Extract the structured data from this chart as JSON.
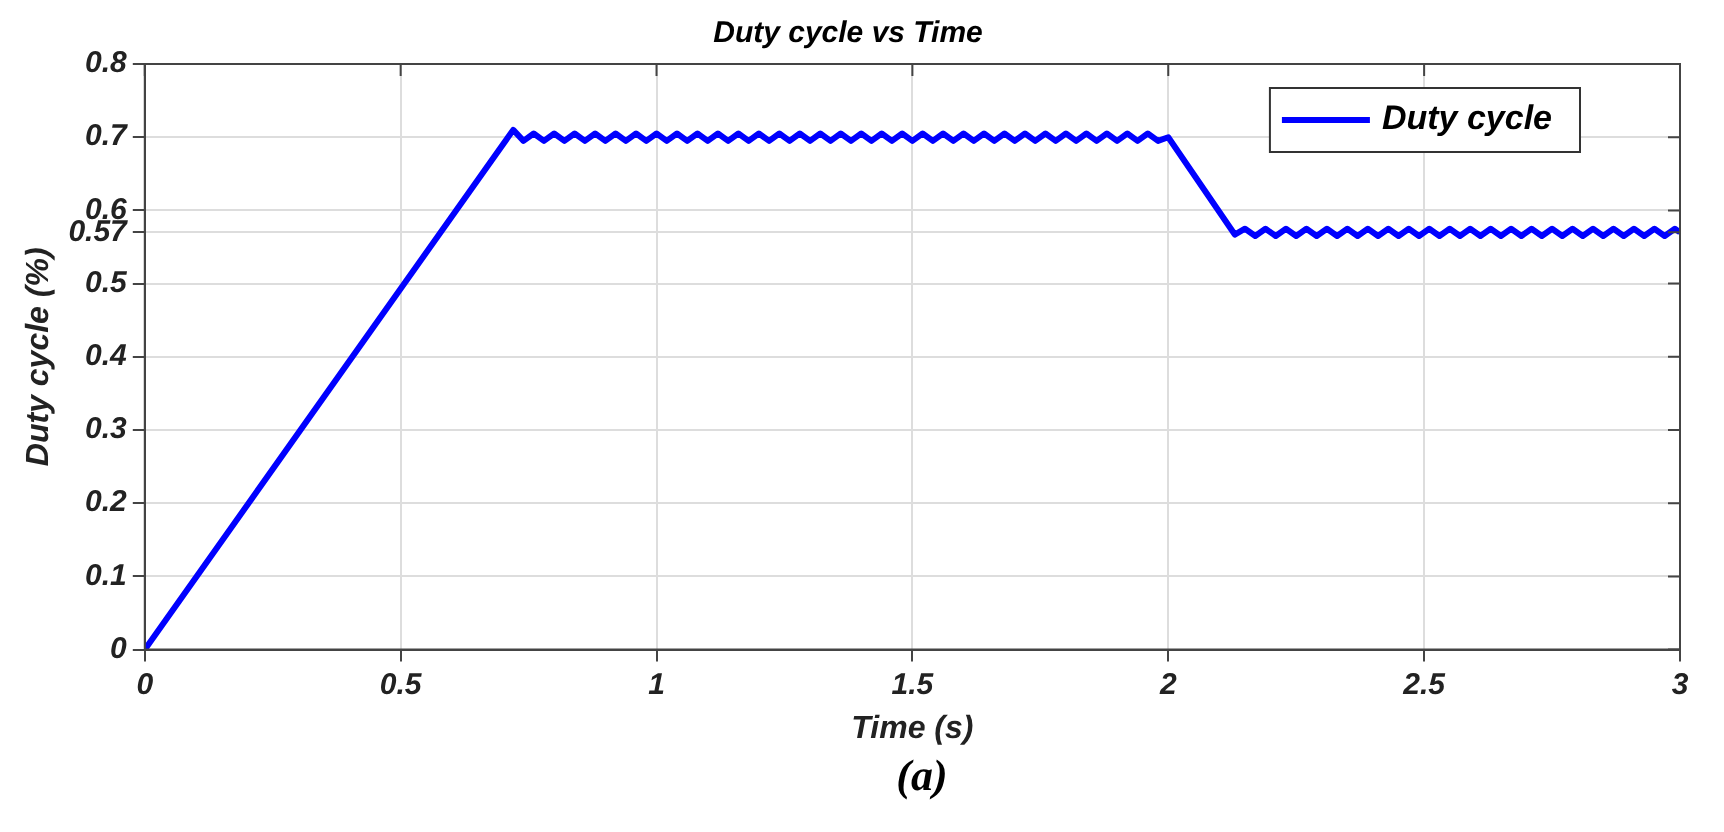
{
  "chart_data": {
    "type": "line",
    "title": "Duty cycle vs Time",
    "xlabel": "Time (s)",
    "ylabel": "Duty cycle (%)",
    "annotations": [
      "(a)"
    ],
    "xlim": [
      0,
      3
    ],
    "xticks": [
      0,
      0.5,
      1,
      1.5,
      2,
      2.5,
      3
    ],
    "ylim": [
      0,
      0.8
    ],
    "yticks": [
      0,
      0.1,
      0.2,
      0.3,
      0.4,
      0.5,
      {
        "value": 0.57,
        "label": "0.57"
      },
      0.6,
      0.7,
      0.8
    ],
    "grid": true,
    "legend": "top right",
    "line_style": "solid",
    "marker": "none",
    "series": [
      {
        "name": "Duty cycle",
        "color": "#0000ff",
        "x": [
          0,
          0.72,
          0.74,
          0.76,
          0.78,
          0.8,
          0.82,
          0.84,
          0.86,
          0.88,
          0.9,
          0.92,
          0.94,
          0.96,
          0.98,
          1,
          1.02,
          1.04,
          1.06,
          1.08,
          1.1,
          1.12,
          1.14,
          1.16,
          1.18,
          1.2,
          1.22,
          1.24,
          1.26,
          1.28,
          1.3,
          1.32,
          1.34,
          1.36,
          1.38,
          1.4,
          1.42,
          1.44,
          1.46,
          1.48,
          1.5,
          1.52,
          1.54,
          1.56,
          1.58,
          1.6,
          1.62,
          1.64,
          1.66,
          1.68,
          1.7,
          1.72,
          1.74,
          1.76,
          1.78,
          1.8,
          1.82,
          1.84,
          1.86,
          1.88,
          1.9,
          1.92,
          1.94,
          1.96,
          1.98,
          2,
          2.13,
          2.15,
          2.17,
          2.19,
          2.21,
          2.23,
          2.25,
          2.27,
          2.29,
          2.31,
          2.33,
          2.35,
          2.37,
          2.39,
          2.41,
          2.43,
          2.45,
          2.47,
          2.49,
          2.51,
          2.53,
          2.55,
          2.57,
          2.59,
          2.61,
          2.63,
          2.65,
          2.67,
          2.69,
          2.71,
          2.73,
          2.75,
          2.77,
          2.79,
          2.81,
          2.83,
          2.85,
          2.87,
          2.89,
          2.91,
          2.93,
          2.95,
          2.97,
          2.99,
          3
        ],
        "values": [
          0,
          0.71,
          0.695,
          0.705,
          0.695,
          0.705,
          0.695,
          0.705,
          0.695,
          0.705,
          0.695,
          0.705,
          0.695,
          0.705,
          0.695,
          0.705,
          0.695,
          0.705,
          0.695,
          0.705,
          0.695,
          0.705,
          0.695,
          0.705,
          0.695,
          0.705,
          0.695,
          0.705,
          0.695,
          0.705,
          0.695,
          0.705,
          0.695,
          0.705,
          0.695,
          0.705,
          0.695,
          0.705,
          0.695,
          0.705,
          0.695,
          0.705,
          0.695,
          0.705,
          0.695,
          0.705,
          0.695,
          0.705,
          0.695,
          0.705,
          0.695,
          0.705,
          0.695,
          0.705,
          0.695,
          0.705,
          0.695,
          0.705,
          0.695,
          0.705,
          0.695,
          0.705,
          0.695,
          0.705,
          0.695,
          0.7,
          0.567,
          0.575,
          0.565,
          0.575,
          0.565,
          0.575,
          0.565,
          0.575,
          0.565,
          0.575,
          0.565,
          0.575,
          0.565,
          0.575,
          0.565,
          0.575,
          0.565,
          0.575,
          0.565,
          0.575,
          0.565,
          0.575,
          0.565,
          0.575,
          0.565,
          0.575,
          0.565,
          0.575,
          0.565,
          0.575,
          0.565,
          0.575,
          0.565,
          0.575,
          0.565,
          0.575,
          0.565,
          0.575,
          0.565,
          0.575,
          0.565,
          0.575,
          0.565,
          0.575,
          0.57
        ]
      }
    ]
  }
}
